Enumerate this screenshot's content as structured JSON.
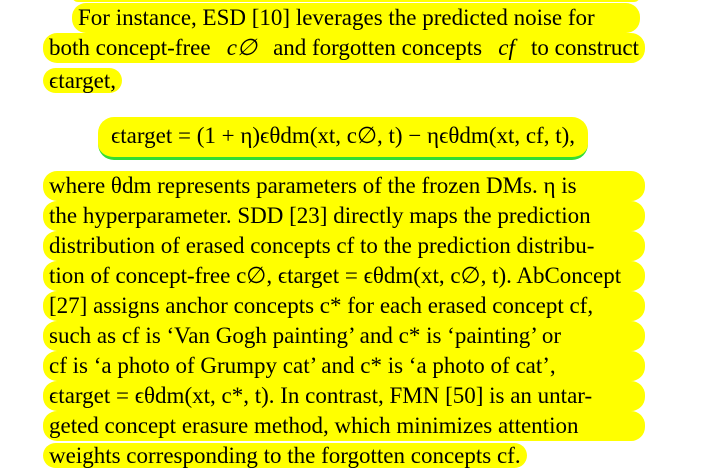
{
  "paragraph1": {
    "line1_text": "For instance, ESD [10] leverages the predicted noise for",
    "line2_pre": "both concept-free",
    "line2_mid": "and forgotten concepts",
    "line2_post": "to construct",
    "sym_c_empty": "c∅",
    "sym_cf": "cf",
    "line3_target": "ϵtarget,"
  },
  "equation": {
    "text": "ϵtarget = (1 + η)ϵθdm(xt, c∅, t) − ηϵθdm(xt, cf, t),"
  },
  "paragraph2": {
    "lines": [
      "where θdm represents parameters of the frozen DMs. η is",
      "the hyperparameter. SDD [23] directly maps the prediction",
      "distribution of erased concepts cf to the prediction distribu-",
      "tion of concept-free c∅, ϵtarget = ϵθdm(xt, c∅, t). AbConcept",
      "[27] assigns anchor concepts c* for each erased concept cf,",
      "such as cf is ‘Van Gogh painting’ and c* is ‘painting’ or",
      "cf is ‘a photo of Grumpy cat’ and c* is ‘a photo of cat’,",
      "ϵtarget = ϵθdm(xt, c*, t). In contrast, FMN [50] is an untar-",
      "geted concept erasure method, which minimizes attention",
      "weights corresponding to the forgotten concepts cf."
    ]
  },
  "colors": {
    "highlight": "#ffff00",
    "underline": "#33dd33"
  }
}
